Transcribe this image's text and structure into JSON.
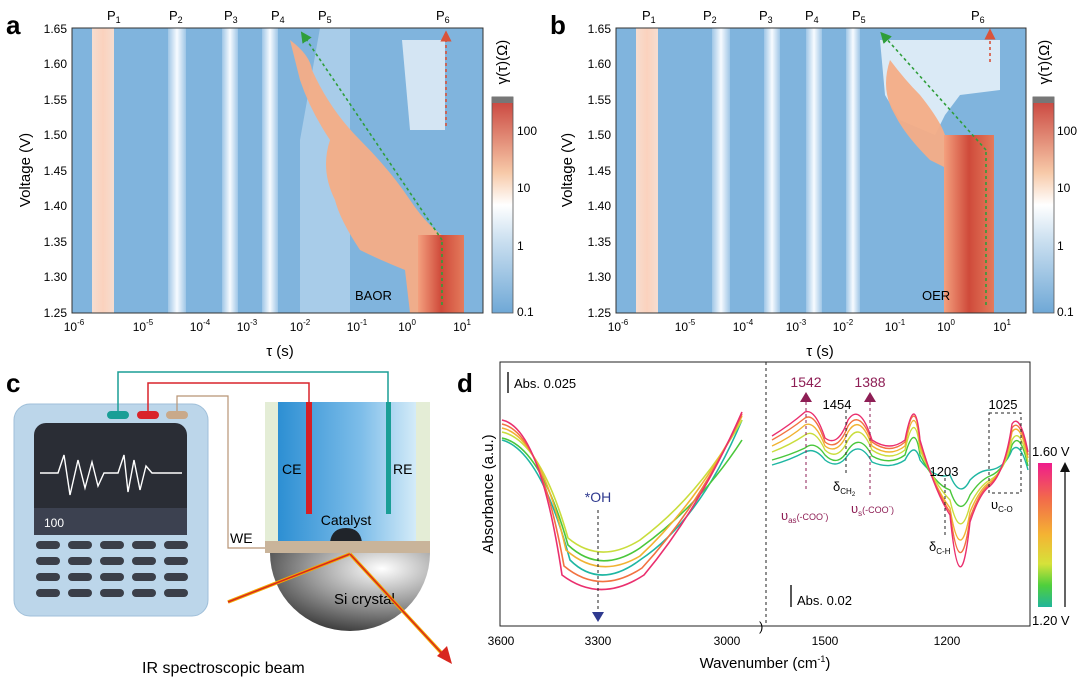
{
  "panels": {
    "a": "a",
    "b": "b",
    "c": "c",
    "d": "d"
  },
  "drt": {
    "peaks": [
      "P",
      "P",
      "P",
      "P",
      "P",
      "P"
    ],
    "peak_subs": [
      "1",
      "2",
      "3",
      "4",
      "5",
      "6"
    ],
    "y_ticks": [
      "1.65",
      "1.60",
      "1.55",
      "1.50",
      "1.45",
      "1.40",
      "1.35",
      "1.30",
      "1.25"
    ],
    "x_base": "10",
    "x_exps": [
      "-6",
      "-5",
      "-4",
      "-3",
      "-2",
      "-1",
      "0",
      "1"
    ],
    "x_single": "10",
    "x_single_exp": "0",
    "ylabel": "Voltage (V)",
    "xlabel": "τ (s)",
    "cbar_title": "γ(τ)(Ω)",
    "cbar_ticks": [
      "100",
      "10",
      "1",
      "0.1"
    ],
    "a_tag": "BAOR",
    "b_tag": "OER"
  },
  "cell": {
    "screen_value": "100",
    "ce": "CE",
    "re": "RE",
    "we": "WE",
    "catalyst": "Catalyst",
    "crystal": "Si crystal",
    "beam": "IR spectroscopic beam"
  },
  "ftir": {
    "ylabel": "Absorbance (a.u.)",
    "xlabel": "Wavenumber (cm",
    "xlabel_sup": "-1",
    "xlabel_end": ")",
    "x_ticks": [
      "3600",
      "3300",
      "3000",
      "1500",
      "1200"
    ],
    "scale1": "Abs.  0.025",
    "scale2": "Abs.  0.02",
    "oh": "*OH",
    "p1542": "1542",
    "p1388": "1388",
    "p1454": "1454",
    "p1203": "1203",
    "p1025": "1025",
    "nu_as": "υ",
    "nu_as_sub": "as",
    "nu_as_tail": "(-COO",
    "nu_s": "υ",
    "nu_s_sub": "s",
    "nu_s_tail": "(-COO",
    "minus": "-",
    "close": ")",
    "delta": "δ",
    "ch2_sub": "CH",
    "ch2_num": "2",
    "ch_sub": "C-H",
    "nu_co": "υ",
    "co_sub": "C-O",
    "legend_top": "1.60 V",
    "legend_bottom": "1.20 V"
  },
  "colors": {
    "accent_red": "#d13b2d",
    "teal": "#1a9e96",
    "magenta": "#e3117b",
    "bg_blue": "#7fb2dc"
  }
}
